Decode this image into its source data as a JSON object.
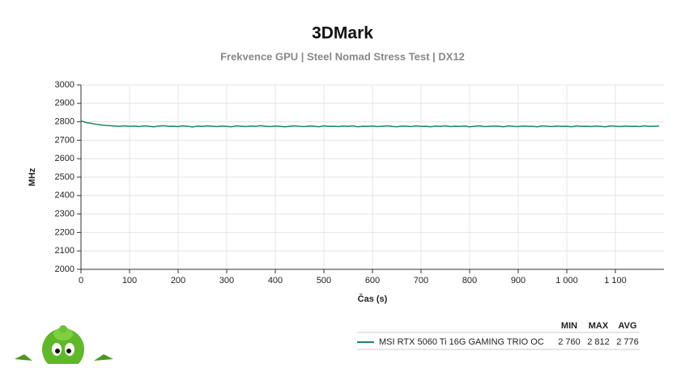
{
  "chart_data": {
    "type": "line",
    "title": "3DMark",
    "subtitle": "Frekvence GPU | Steel Nomad Stress Test | DX12",
    "x_label": "Čas (s)",
    "y_label": "MHz",
    "xlim": [
      0,
      1200
    ],
    "ylim": [
      2000,
      3000
    ],
    "xticks": [
      0,
      100,
      200,
      300,
      400,
      500,
      600,
      700,
      800,
      900,
      {
        "value": 1000,
        "label": "1 000"
      },
      {
        "value": 1100,
        "label": "1 100"
      }
    ],
    "yticks": [
      2000,
      2100,
      2200,
      2300,
      2400,
      2500,
      2600,
      2700,
      2800,
      2900,
      3000
    ],
    "grid": true,
    "stat_headers": [
      "MIN",
      "MAX",
      "AVG"
    ],
    "x": [
      0,
      10,
      20,
      30,
      40,
      50,
      60,
      70,
      80,
      90,
      100,
      110,
      120,
      130,
      140,
      150,
      160,
      170,
      180,
      190,
      200,
      210,
      220,
      230,
      240,
      250,
      260,
      270,
      280,
      290,
      300,
      310,
      320,
      330,
      340,
      350,
      360,
      370,
      380,
      390,
      400,
      410,
      420,
      430,
      440,
      450,
      460,
      470,
      480,
      490,
      500,
      510,
      520,
      530,
      540,
      550,
      560,
      570,
      580,
      590,
      600,
      610,
      620,
      630,
      640,
      650,
      660,
      670,
      680,
      690,
      700,
      710,
      720,
      730,
      740,
      750,
      760,
      770,
      780,
      790,
      800,
      810,
      820,
      830,
      840,
      850,
      860,
      870,
      880,
      890,
      900,
      910,
      920,
      930,
      940,
      950,
      960,
      970,
      980,
      990,
      1000,
      1010,
      1020,
      1030,
      1040,
      1050,
      1060,
      1070,
      1080,
      1090,
      1100,
      1110,
      1120,
      1130,
      1140,
      1150,
      1160,
      1170,
      1180,
      1190
    ],
    "series": [
      {
        "name": "MSI RTX 5060 Ti 16G GAMING TRIO OC",
        "color": "#168b5c",
        "stats": [
          {
            "value": 2760,
            "label": "2 760"
          },
          {
            "value": 2812,
            "label": "2 812"
          },
          {
            "value": 2776,
            "label": "2 776"
          }
        ],
        "values": [
          2805,
          2796,
          2792,
          2787,
          2784,
          2780,
          2779,
          2777,
          2776,
          2778,
          2775,
          2777,
          2774,
          2778,
          2776,
          2773,
          2777,
          2779,
          2775,
          2776,
          2774,
          2778,
          2776,
          2772,
          2777,
          2775,
          2778,
          2776,
          2774,
          2777,
          2775,
          2773,
          2778,
          2776,
          2774,
          2777,
          2775,
          2779,
          2776,
          2774,
          2777,
          2775,
          2773,
          2776,
          2778,
          2775,
          2774,
          2777,
          2776,
          2773,
          2778,
          2775,
          2776,
          2774,
          2777,
          2775,
          2778,
          2773,
          2776,
          2775,
          2777,
          2774,
          2776,
          2778,
          2775,
          2773,
          2777,
          2776,
          2774,
          2778,
          2775,
          2776,
          2773,
          2777,
          2775,
          2778,
          2774,
          2776,
          2775,
          2777,
          2773,
          2776,
          2778,
          2774,
          2775,
          2777,
          2776,
          2773,
          2778,
          2775,
          2774,
          2777,
          2776,
          2775,
          2773,
          2778,
          2776,
          2774,
          2777,
          2775,
          2776,
          2773,
          2778,
          2775,
          2776,
          2774,
          2777,
          2775,
          2773,
          2778,
          2776,
          2774,
          2777,
          2775,
          2776,
          2774,
          2778,
          2775,
          2776,
          2777
        ]
      }
    ]
  }
}
